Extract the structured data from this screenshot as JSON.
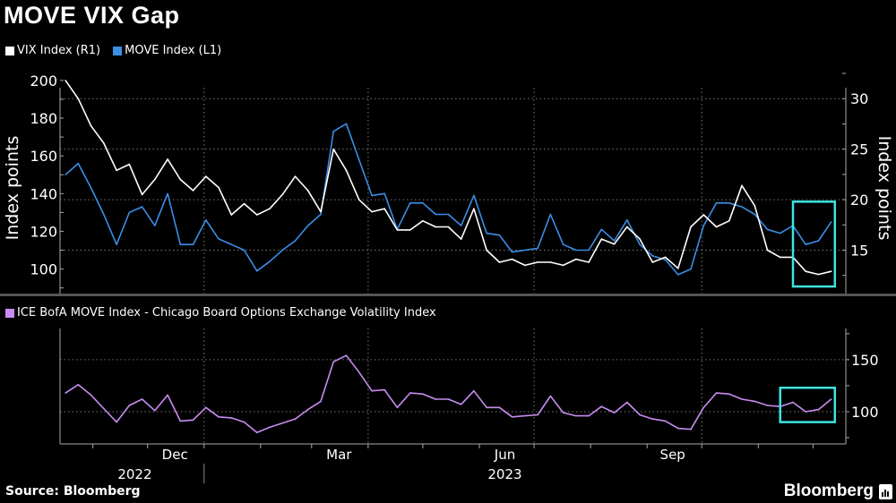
{
  "title": "MOVE VIX Gap",
  "source": "Source: Bloomberg",
  "logo_text": "Bloomberg",
  "colors": {
    "vix": "#ffffff",
    "move": "#3a8ee6",
    "gap": "#c98cf2",
    "highlight": "#3fe3e3",
    "grid": "#777777"
  },
  "chart_data": [
    {
      "type": "line",
      "legend": [
        "VIX Index (R1)",
        "MOVE Index (L1)"
      ],
      "legend_placement": "top-left",
      "ylabel_left": "Index points",
      "ylabel_right": "Index points",
      "ylim_left": [
        87,
        208
      ],
      "ylim_right": [
        10.7,
        33.3
      ],
      "yticks_left": [
        "100",
        "120",
        "140",
        "160",
        "180",
        "200"
      ],
      "yticks_right": [
        "15",
        "20",
        "25",
        "30"
      ],
      "grid": true,
      "x": [
        "2022-10-17",
        "2022-10-24",
        "2022-10-31",
        "2022-11-07",
        "2022-11-14",
        "2022-11-21",
        "2022-11-28",
        "2022-12-05",
        "2022-12-12",
        "2022-12-19",
        "2022-12-26",
        "2023-01-02",
        "2023-01-09",
        "2023-01-16",
        "2023-01-23",
        "2023-01-30",
        "2023-02-06",
        "2023-02-13",
        "2023-02-20",
        "2023-02-27",
        "2023-03-06",
        "2023-03-13",
        "2023-03-20",
        "2023-03-27",
        "2023-04-03",
        "2023-04-10",
        "2023-04-17",
        "2023-04-24",
        "2023-05-01",
        "2023-05-08",
        "2023-05-15",
        "2023-05-22",
        "2023-05-29",
        "2023-06-05",
        "2023-06-12",
        "2023-06-19",
        "2023-06-26",
        "2023-07-03",
        "2023-07-10",
        "2023-07-17",
        "2023-07-24",
        "2023-07-31",
        "2023-08-07",
        "2023-08-14",
        "2023-08-21",
        "2023-08-28",
        "2023-09-04",
        "2023-09-11",
        "2023-09-18",
        "2023-09-25",
        "2023-10-02",
        "2023-10-09",
        "2023-10-16",
        "2023-10-23",
        "2023-10-30",
        "2023-11-06",
        "2023-11-13",
        "2023-11-20",
        "2023-11-27",
        "2023-12-04",
        "2023-12-11"
      ],
      "series": [
        {
          "name": "VIX Index (R1)",
          "axis": "right",
          "values": [
            31.8,
            30,
            27.3,
            25.6,
            22.9,
            23.5,
            20.5,
            22,
            24,
            22,
            20.9,
            22.3,
            21.2,
            18.5,
            19.6,
            18.5,
            19.1,
            20.5,
            22.3,
            20.9,
            18.8,
            25,
            22.9,
            20,
            18.8,
            19.1,
            17,
            17,
            17.9,
            17.3,
            17.3,
            16.1,
            19.1,
            15,
            13.8,
            14.1,
            13.5,
            13.8,
            13.8,
            13.5,
            14.1,
            13.8,
            16.1,
            15.6,
            17.3,
            16.1,
            13.8,
            14.3,
            13.2,
            17.3,
            18.5,
            17.3,
            17.9,
            21.4,
            19.4,
            15,
            14.3,
            14.3,
            12.9,
            12.6,
            12.9
          ]
        },
        {
          "name": "MOVE Index (L1)",
          "axis": "left",
          "values": [
            150,
            156,
            143,
            129,
            113,
            130,
            133,
            123,
            140,
            113,
            113,
            126,
            116,
            113,
            110,
            99,
            104,
            110,
            115,
            123,
            129,
            173,
            177,
            158,
            139,
            140,
            121,
            135,
            135,
            129,
            129,
            123,
            139,
            119,
            118,
            109,
            110,
            111,
            129,
            113,
            110,
            110,
            121,
            115,
            126,
            113,
            107,
            105,
            97,
            100,
            123,
            135,
            135,
            133,
            129,
            121,
            119,
            123,
            113,
            115,
            125
          ]
        }
      ],
      "highlight": {
        "x_range": [
          "2023-11-20",
          "2023-12-13"
        ],
        "y_range_right": [
          11.4,
          19.8
        ]
      }
    },
    {
      "type": "line",
      "legend": [
        "ICE BofA MOVE Index - Chicago Board Options Exchange Volatility Index"
      ],
      "ylim": [
        69,
        180
      ],
      "yticks": [
        "100",
        "150"
      ],
      "grid": true,
      "series": [
        {
          "name": "ICE BofA MOVE Index - Chicago Board Options Exchange Volatility Index",
          "values": [
            118,
            126,
            116,
            103,
            90,
            106,
            112,
            101,
            116,
            91,
            92,
            104,
            95,
            94,
            90,
            80,
            85,
            89,
            93,
            102,
            110,
            148,
            154,
            138,
            120,
            121,
            104,
            118,
            117,
            112,
            112,
            107,
            120,
            104,
            104,
            95,
            96,
            97,
            115,
            99,
            96,
            96,
            105,
            99,
            109,
            97,
            93,
            91,
            84,
            83,
            104,
            118,
            117,
            112,
            110,
            106,
            105,
            109,
            100,
            102,
            112
          ]
        }
      ],
      "highlight": {
        "x_range": [
          "2023-11-13",
          "2023-12-13"
        ],
        "y_range": [
          90,
          123
        ]
      }
    }
  ],
  "x_axis": {
    "month_labels": [
      {
        "label": "Dec",
        "date": "2022-12-16"
      },
      {
        "label": "Mar",
        "date": "2023-03-16"
      },
      {
        "label": "Jun",
        "date": "2023-06-15"
      },
      {
        "label": "Sep",
        "date": "2023-09-15"
      }
    ],
    "year_labels": [
      {
        "label": "2022",
        "date": "2022-11-24"
      },
      {
        "label": "2023",
        "date": "2023-06-15"
      }
    ],
    "xlim": [
      "2022-10-14",
      "2023-12-19"
    ]
  }
}
